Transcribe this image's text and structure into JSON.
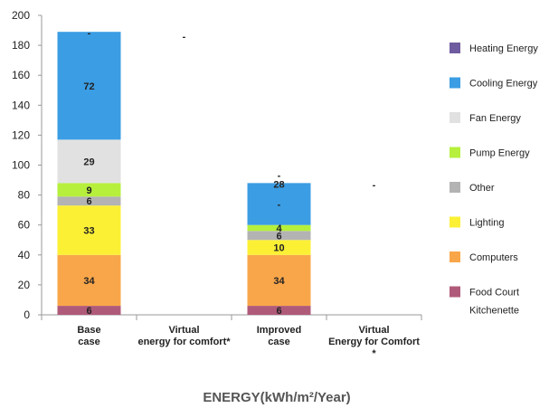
{
  "chart_data": {
    "type": "bar",
    "stacked": true,
    "title": "",
    "xlabel": "ENERGY(kWh/m²/Year)",
    "ylabel": "",
    "ylim": [
      0,
      200
    ],
    "yticks": [
      0,
      20,
      40,
      60,
      80,
      100,
      120,
      140,
      160,
      180,
      200
    ],
    "grid": false,
    "legend_position": "right",
    "categories": [
      [
        "Base",
        "case"
      ],
      [
        "Virtual",
        "energy for comfort*"
      ],
      [
        "Improved",
        "case"
      ],
      [
        "Virtual",
        "Energy for Comfort",
        "*"
      ]
    ],
    "series": [
      {
        "name": [
          "Food Court",
          "Kitchenette"
        ],
        "color": "#b05a7a",
        "values": [
          6,
          null,
          6,
          null
        ]
      },
      {
        "name": [
          "Computers"
        ],
        "color": "#f9a64a",
        "values": [
          34,
          null,
          34,
          null
        ]
      },
      {
        "name": [
          "Lighting"
        ],
        "color": "#fcf035",
        "values": [
          33,
          null,
          10,
          null
        ]
      },
      {
        "name": [
          "Other"
        ],
        "color": "#b3b3b3",
        "values": [
          6,
          null,
          6,
          null
        ]
      },
      {
        "name": [
          "Pump Energy"
        ],
        "color": "#b6f03c",
        "values": [
          9,
          null,
          4,
          null
        ]
      },
      {
        "name": [
          "Fan Energy"
        ],
        "color": "#e1e1e1",
        "values": [
          29,
          null,
          null,
          null
        ]
      },
      {
        "name": [
          "Cooling Energy"
        ],
        "color": "#3b9de3",
        "values": [
          72,
          null,
          28,
          null
        ]
      },
      {
        "name": [
          "Heating Energy"
        ],
        "color": "#6f5b9f",
        "values": [
          null,
          null,
          null,
          null
        ]
      }
    ],
    "data_labels": [
      [
        "6",
        "34",
        "33",
        "6",
        "9",
        "29",
        "72",
        "-"
      ],
      [
        "-"
      ],
      [
        "6",
        "34",
        "10",
        "6",
        "4",
        "-",
        "28",
        "-"
      ],
      [
        "-"
      ]
    ],
    "legend_order": [
      "Heating Energy",
      "Cooling Energy",
      "Fan Energy",
      "Pump Energy",
      "Other",
      "Lighting",
      "Computers",
      "Food Court Kitchenette"
    ]
  }
}
